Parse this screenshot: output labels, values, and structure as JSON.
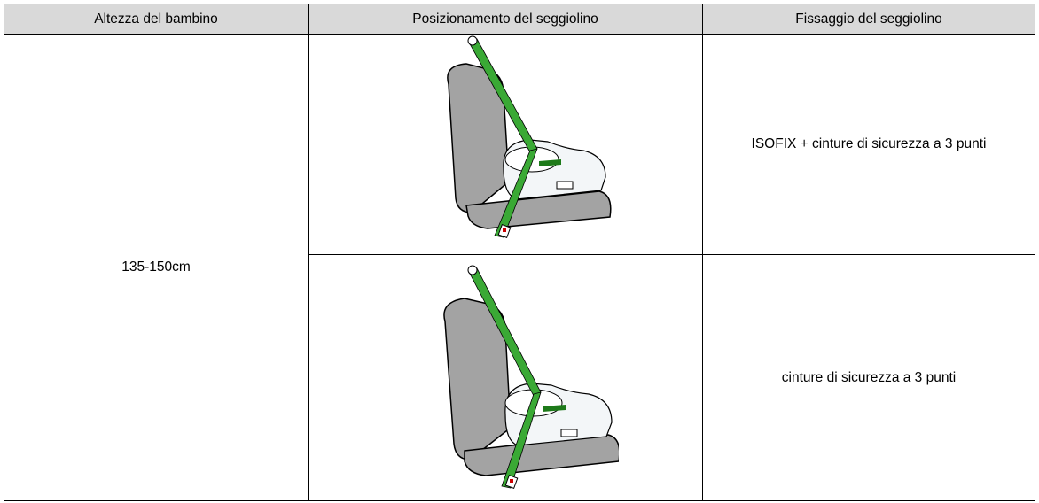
{
  "table": {
    "header": [
      "Altezza del bambino",
      "Posizionamento del seggiolino",
      "Fissaggio del seggiolino"
    ],
    "height": "135-150cm",
    "fixing": [
      "ISOFIX + cinture di sicurezza a 3 punti",
      "cinture di sicurezza a 3 punti"
    ]
  }
}
